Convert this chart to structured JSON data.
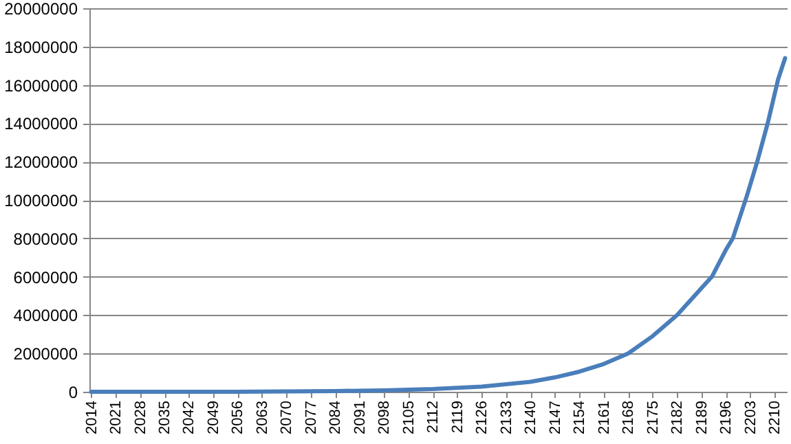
{
  "chart_data": {
    "type": "line",
    "x": [
      2014,
      2028,
      2042,
      2056,
      2070,
      2084,
      2098,
      2112,
      2126,
      2140,
      2147,
      2154,
      2161,
      2168,
      2175,
      2182,
      2189,
      2192,
      2196,
      2198,
      2200,
      2202,
      2205,
      2208,
      2211,
      2213
    ],
    "series": [
      {
        "color": "#4a7ebb",
        "values": [
          0,
          0,
          0,
          0,
          20000,
          40000,
          70000,
          140000,
          270000,
          520000,
          750000,
          1050000,
          1450000,
          2000000,
          2900000,
          4000000,
          5400000,
          6000000,
          7400000,
          8000000,
          9100000,
          10200000,
          12000000,
          14000000,
          16300000,
          17400000
        ]
      }
    ],
    "xlim": [
      2013.5,
      2213.5
    ],
    "xticks": [
      2014,
      2021,
      2028,
      2035,
      2042,
      2049,
      2056,
      2063,
      2070,
      2077,
      2084,
      2091,
      2098,
      2105,
      2112,
      2119,
      2126,
      2133,
      2140,
      2147,
      2154,
      2161,
      2168,
      2175,
      2182,
      2189,
      2196,
      2203,
      2210
    ],
    "ylim": [
      0,
      20000000
    ],
    "yticks": [
      0,
      2000000,
      4000000,
      6000000,
      8000000,
      10000000,
      12000000,
      14000000,
      16000000,
      18000000,
      20000000
    ],
    "grid": "y",
    "line_style": "solid"
  }
}
